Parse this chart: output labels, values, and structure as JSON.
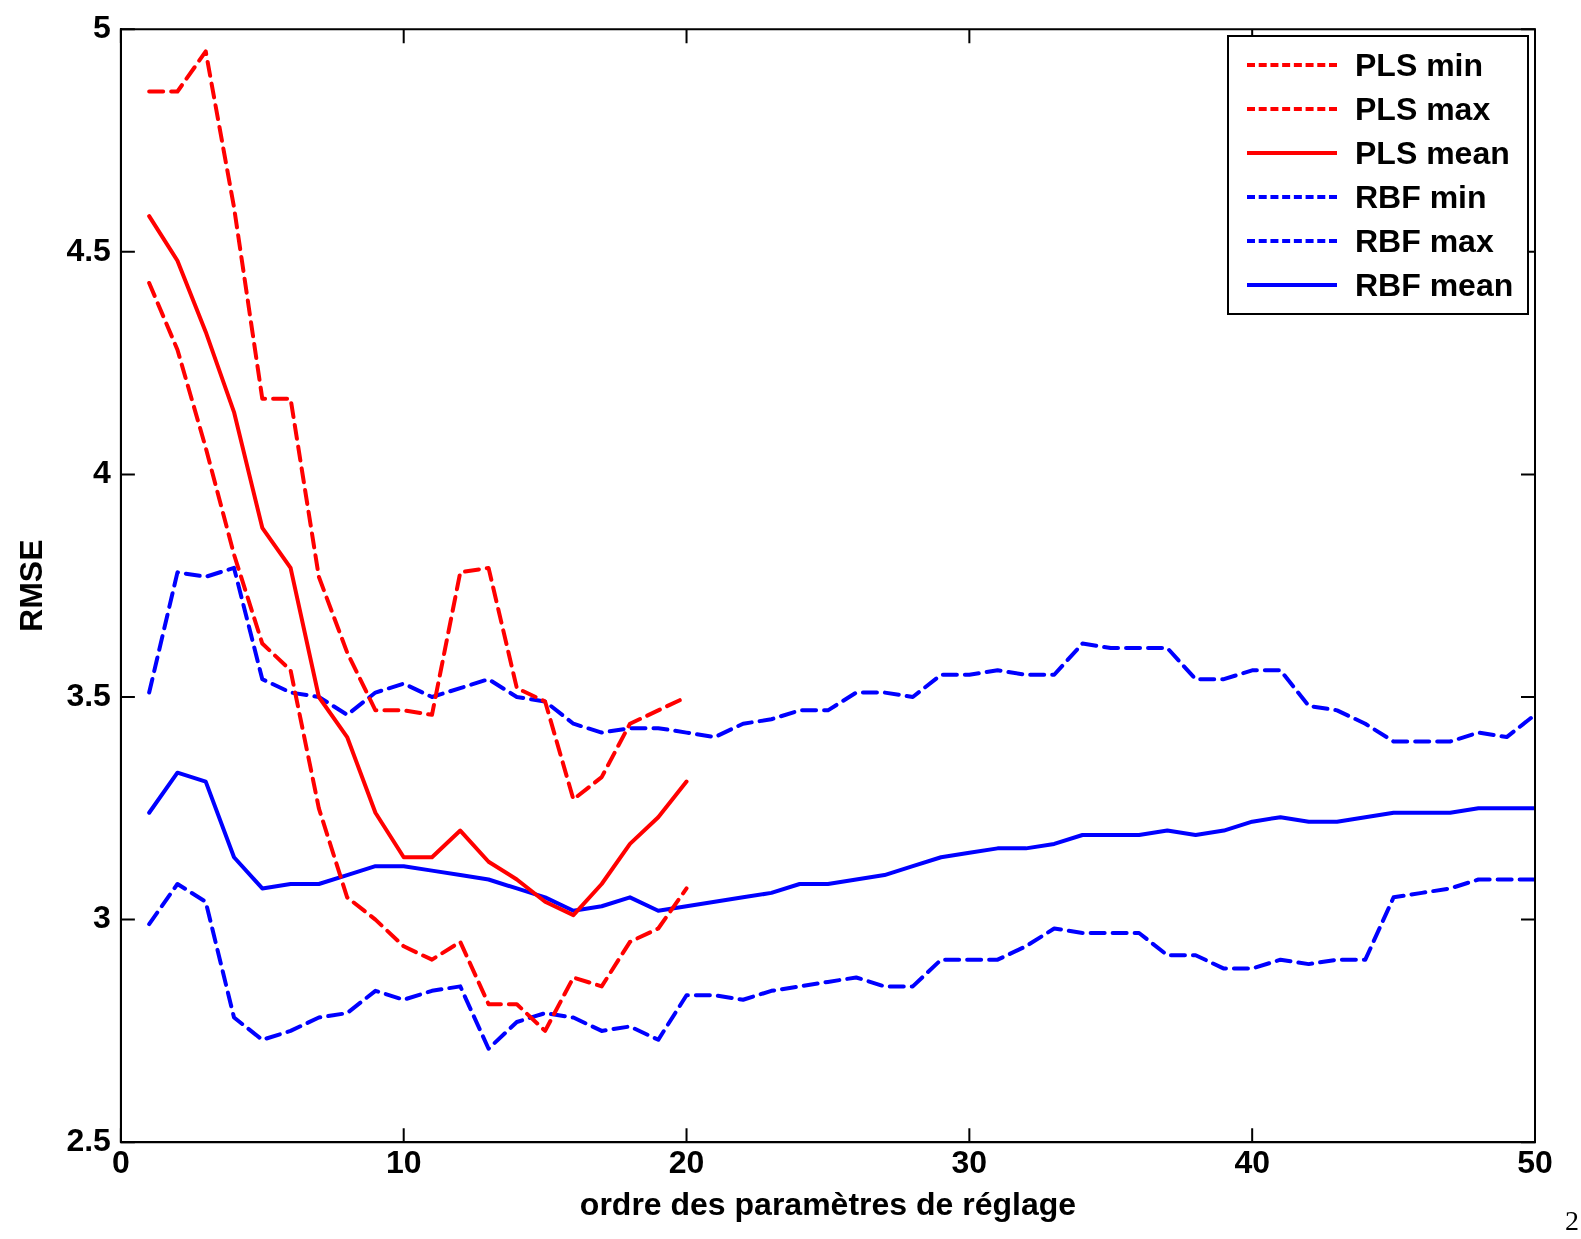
{
  "chart_data": {
    "type": "line",
    "xlabel": "ordre des paramètres de réglage",
    "ylabel": "RMSE",
    "x": [
      1,
      2,
      3,
      4,
      5,
      6,
      7,
      8,
      9,
      10,
      11,
      12,
      13,
      14,
      15,
      16,
      17,
      18,
      19,
      20,
      21,
      22,
      23,
      24,
      25,
      26,
      27,
      28,
      29,
      30,
      31,
      32,
      33,
      34,
      35,
      36,
      37,
      38,
      39,
      40,
      41,
      42,
      43,
      44,
      45,
      46,
      47,
      48,
      49,
      50
    ],
    "xlim": [
      0,
      50
    ],
    "xticks": [
      0,
      10,
      20,
      30,
      40,
      50
    ],
    "ylim": [
      2.5,
      5
    ],
    "yticks": [
      2.5,
      3,
      3.5,
      4,
      4.5,
      5
    ],
    "grid": false,
    "legend": "top right",
    "marker": "none",
    "annotations": [
      "2"
    ],
    "series": [
      {
        "name": "PLS min",
        "color": "#ff0000",
        "line_style": "dashed",
        "x": [
          1,
          2,
          3,
          4,
          5,
          6,
          7,
          8,
          9,
          10,
          11,
          12,
          13,
          14,
          15,
          16,
          17,
          18,
          19,
          20
        ],
        "values": [
          4.43,
          4.28,
          4.06,
          3.82,
          3.62,
          3.56,
          3.25,
          3.05,
          3.0,
          2.94,
          2.91,
          2.95,
          2.81,
          2.81,
          2.75,
          2.87,
          2.85,
          2.95,
          2.98,
          3.07
        ]
      },
      {
        "name": "PLS max",
        "color": "#ff0000",
        "line_style": "dashed",
        "x": [
          1,
          2,
          3,
          4,
          5,
          6,
          7,
          8,
          9,
          10,
          11,
          12,
          13,
          14,
          15,
          16,
          17,
          18,
          19,
          20
        ],
        "values": [
          4.86,
          4.86,
          4.95,
          4.6,
          4.17,
          4.17,
          3.77,
          3.6,
          3.47,
          3.47,
          3.46,
          3.78,
          3.79,
          3.52,
          3.49,
          3.27,
          3.32,
          3.44,
          3.47,
          3.5
        ]
      },
      {
        "name": "PLS mean",
        "color": "#ff0000",
        "line_style": "solid",
        "x": [
          1,
          2,
          3,
          4,
          5,
          6,
          7,
          8,
          9,
          10,
          11,
          12,
          13,
          14,
          15,
          16,
          17,
          18,
          19,
          20
        ],
        "values": [
          4.58,
          4.48,
          4.32,
          4.14,
          3.88,
          3.79,
          3.5,
          3.41,
          3.24,
          3.14,
          3.14,
          3.2,
          3.13,
          3.09,
          3.04,
          3.01,
          3.08,
          3.17,
          3.23,
          3.31
        ]
      },
      {
        "name": "RBF min",
        "color": "#0000ff",
        "line_style": "dashed",
        "values": [
          2.99,
          3.08,
          3.04,
          2.78,
          2.73,
          2.75,
          2.78,
          2.79,
          2.84,
          2.82,
          2.84,
          2.85,
          2.71,
          2.77,
          2.79,
          2.78,
          2.75,
          2.76,
          2.73,
          2.83,
          2.83,
          2.82,
          2.84,
          2.85,
          2.86,
          2.87,
          2.85,
          2.85,
          2.91,
          2.91,
          2.91,
          2.94,
          2.98,
          2.97,
          2.97,
          2.97,
          2.92,
          2.92,
          2.89,
          2.89,
          2.91,
          2.9,
          2.91,
          2.91,
          3.05,
          3.06,
          3.07,
          3.09,
          3.09,
          3.09
        ]
      },
      {
        "name": "RBF max",
        "color": "#0000ff",
        "line_style": "dashed",
        "values": [
          3.51,
          3.78,
          3.77,
          3.79,
          3.54,
          3.51,
          3.5,
          3.46,
          3.51,
          3.53,
          3.5,
          3.52,
          3.54,
          3.5,
          3.49,
          3.44,
          3.42,
          3.43,
          3.43,
          3.42,
          3.41,
          3.44,
          3.45,
          3.47,
          3.47,
          3.51,
          3.51,
          3.5,
          3.55,
          3.55,
          3.56,
          3.55,
          3.55,
          3.62,
          3.61,
          3.61,
          3.61,
          3.54,
          3.54,
          3.56,
          3.56,
          3.48,
          3.47,
          3.44,
          3.4,
          3.4,
          3.4,
          3.42,
          3.41,
          3.46
        ]
      },
      {
        "name": "RBF mean",
        "color": "#0000ff",
        "line_style": "solid",
        "values": [
          3.24,
          3.33,
          3.31,
          3.14,
          3.07,
          3.08,
          3.08,
          3.1,
          3.12,
          3.12,
          3.11,
          3.1,
          3.09,
          3.07,
          3.05,
          3.02,
          3.03,
          3.05,
          3.02,
          3.03,
          3.04,
          3.05,
          3.06,
          3.08,
          3.08,
          3.09,
          3.1,
          3.12,
          3.14,
          3.15,
          3.16,
          3.16,
          3.17,
          3.19,
          3.19,
          3.19,
          3.2,
          3.19,
          3.2,
          3.22,
          3.23,
          3.22,
          3.22,
          3.23,
          3.24,
          3.24,
          3.24,
          3.25,
          3.25,
          3.25
        ]
      }
    ]
  }
}
